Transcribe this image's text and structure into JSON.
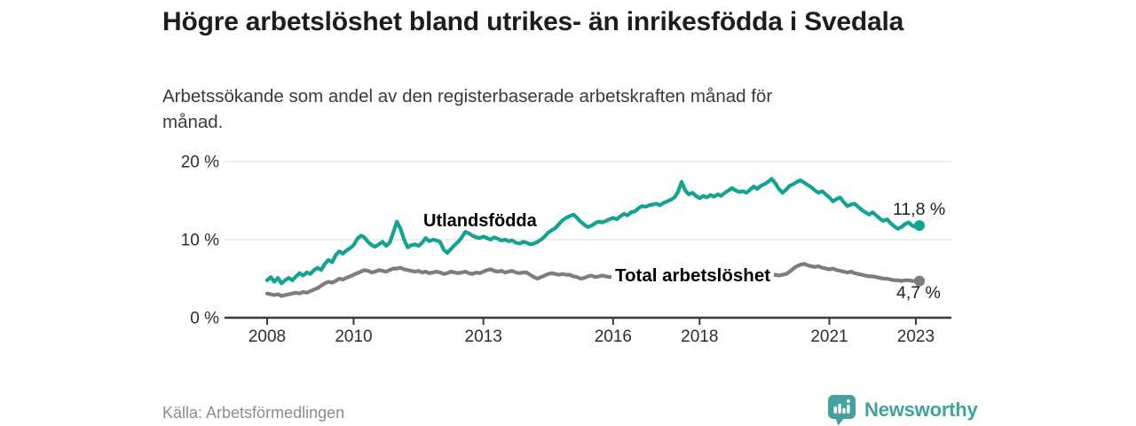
{
  "header": {
    "title": "Högre arbetslöshet bland utrikes- än inrikesfödda i Svedala",
    "subtitle": "Arbetssökande som andel av den registerbaserade arbetskraften månad för månad."
  },
  "chart_data": {
    "type": "line",
    "title": "Högre arbetslöshet bland utrikes- än inrikesfödda i Svedala",
    "subtitle": "Arbetssökande som andel av den registerbaserade arbetskraften månad för månad.",
    "unit": "%",
    "x_interval": "monthly",
    "x_start_year": 2008,
    "x_end": "2023-02",
    "ylim": [
      0,
      20
    ],
    "grid": "horizontal",
    "legend_position": "inline-labels",
    "y_ticks": [
      {
        "value": 20,
        "label": "20 %"
      },
      {
        "value": 10,
        "label": "10 %"
      },
      {
        "value": 0,
        "label": "0 %"
      }
    ],
    "x_ticks": [
      {
        "year": 2008,
        "label": "2008"
      },
      {
        "year": 2010,
        "label": "2010"
      },
      {
        "year": 2013,
        "label": "2013"
      },
      {
        "year": 2016,
        "label": "2016"
      },
      {
        "year": 2018,
        "label": "2018"
      },
      {
        "year": 2021,
        "label": "2021"
      },
      {
        "year": 2023,
        "label": "2023"
      }
    ],
    "series": [
      {
        "name": "Utlandsfödda",
        "color": "#14a292",
        "end_value": 11.8,
        "end_label": "11,8 %",
        "values": [
          4.8,
          5.2,
          4.6,
          5.1,
          4.4,
          4.8,
          5.1,
          4.8,
          5.3,
          5.7,
          5.4,
          5.8,
          5.6,
          6.1,
          6.4,
          6.1,
          6.9,
          7.4,
          7.1,
          8.0,
          8.5,
          8.2,
          8.6,
          8.9,
          9.3,
          10.1,
          10.5,
          10.3,
          9.7,
          9.3,
          9.1,
          9.4,
          9.7,
          9.2,
          9.6,
          10.9,
          12.3,
          11.4,
          10.0,
          9.0,
          9.3,
          9.4,
          9.2,
          9.6,
          10.2,
          9.8,
          10.0,
          9.9,
          9.7,
          8.7,
          8.3,
          8.8,
          9.3,
          9.7,
          10.3,
          11.0,
          10.8,
          10.5,
          10.3,
          10.2,
          10.4,
          10.2,
          10.0,
          10.3,
          10.1,
          9.9,
          10.0,
          9.8,
          9.9,
          9.6,
          9.5,
          9.7,
          9.6,
          9.4,
          9.5,
          9.7,
          10.0,
          10.4,
          10.9,
          11.2,
          11.5,
          12.0,
          12.5,
          12.8,
          13.0,
          13.2,
          12.8,
          12.3,
          11.9,
          11.6,
          11.8,
          12.1,
          12.3,
          12.2,
          12.4,
          12.6,
          12.8,
          12.6,
          13.0,
          13.3,
          13.1,
          13.5,
          13.6,
          14.0,
          14.3,
          14.2,
          14.4,
          14.5,
          14.6,
          14.4,
          14.7,
          14.9,
          15.1,
          15.4,
          16.1,
          17.4,
          16.3,
          15.8,
          16.0,
          15.6,
          15.3,
          15.6,
          15.4,
          15.7,
          15.5,
          15.8,
          15.6,
          16.0,
          16.3,
          16.6,
          16.3,
          16.1,
          16.2,
          16.0,
          16.4,
          16.8,
          16.5,
          16.9,
          17.1,
          17.4,
          17.8,
          17.2,
          16.5,
          16.0,
          16.4,
          16.9,
          17.1,
          17.4,
          17.6,
          17.3,
          17.0,
          16.7,
          16.3,
          16.0,
          16.2,
          15.8,
          15.4,
          14.9,
          15.2,
          15.4,
          14.8,
          14.3,
          14.5,
          14.6,
          14.2,
          13.8,
          13.5,
          13.2,
          13.5,
          13.1,
          12.7,
          12.4,
          12.6,
          12.1,
          11.7,
          11.4,
          11.6,
          12.0,
          12.2,
          11.8,
          11.6,
          11.8
        ]
      },
      {
        "name": "Total arbetslöshet",
        "color": "#7d7d7d",
        "end_value": 4.7,
        "end_label": "4,7 %",
        "values": [
          3.1,
          3.0,
          2.9,
          3.0,
          2.8,
          2.9,
          3.0,
          3.1,
          3.2,
          3.1,
          3.3,
          3.2,
          3.4,
          3.6,
          3.8,
          4.1,
          4.4,
          4.6,
          4.5,
          4.7,
          5.0,
          4.9,
          5.1,
          5.3,
          5.5,
          5.7,
          5.9,
          6.1,
          6.0,
          5.8,
          5.9,
          6.1,
          6.0,
          5.9,
          6.1,
          6.3,
          6.3,
          6.4,
          6.2,
          6.1,
          6.0,
          5.9,
          6.0,
          5.8,
          5.9,
          5.7,
          5.8,
          5.9,
          5.8,
          5.6,
          5.7,
          5.9,
          5.8,
          5.7,
          5.8,
          5.9,
          5.7,
          5.6,
          5.8,
          5.7,
          5.9,
          6.1,
          6.2,
          6.0,
          5.9,
          6.0,
          5.8,
          5.9,
          6.0,
          5.8,
          5.7,
          5.8,
          5.8,
          5.5,
          5.2,
          5.0,
          5.2,
          5.4,
          5.6,
          5.7,
          5.6,
          5.5,
          5.6,
          5.5,
          5.5,
          5.3,
          5.2,
          5.0,
          5.1,
          5.3,
          5.4,
          5.2,
          5.3,
          5.4,
          5.3,
          5.2,
          5.3,
          5.4,
          5.2,
          5.3,
          5.1,
          5.2,
          5.3,
          5.2,
          5.1,
          5.2,
          5.3,
          5.2,
          5.3,
          5.2,
          5.1,
          5.2,
          5.3,
          5.4,
          5.3,
          5.2,
          5.3,
          5.2,
          5.1,
          5.2,
          5.1,
          5.2,
          5.0,
          5.1,
          5.2,
          5.1,
          5.0,
          5.1,
          5.2,
          5.1,
          5.0,
          5.1,
          5.2,
          5.1,
          5.2,
          5.3,
          5.2,
          5.3,
          5.4,
          5.3,
          5.4,
          5.5,
          5.4,
          5.5,
          5.6,
          5.9,
          6.3,
          6.6,
          6.8,
          6.9,
          6.7,
          6.6,
          6.5,
          6.6,
          6.4,
          6.3,
          6.2,
          6.3,
          6.1,
          6.0,
          5.9,
          5.8,
          5.9,
          5.7,
          5.6,
          5.5,
          5.4,
          5.3,
          5.3,
          5.2,
          5.1,
          5.0,
          5.0,
          4.9,
          4.8,
          4.8,
          4.7,
          4.8,
          4.8,
          4.7,
          4.7,
          4.7
        ]
      }
    ]
  },
  "footer": {
    "source": "Källa: Arbetsförmedlingen",
    "brand": "Newsworthy"
  },
  "icons": {
    "logo": "newsworthy-speech-bubble-bar-chart-icon"
  },
  "colors": {
    "accent_teal": "#14a292",
    "series_gray": "#7d7d7d",
    "logo_teal": "#44a09e",
    "grid": "#dcdcdc",
    "axis": "#3a3a3a"
  }
}
